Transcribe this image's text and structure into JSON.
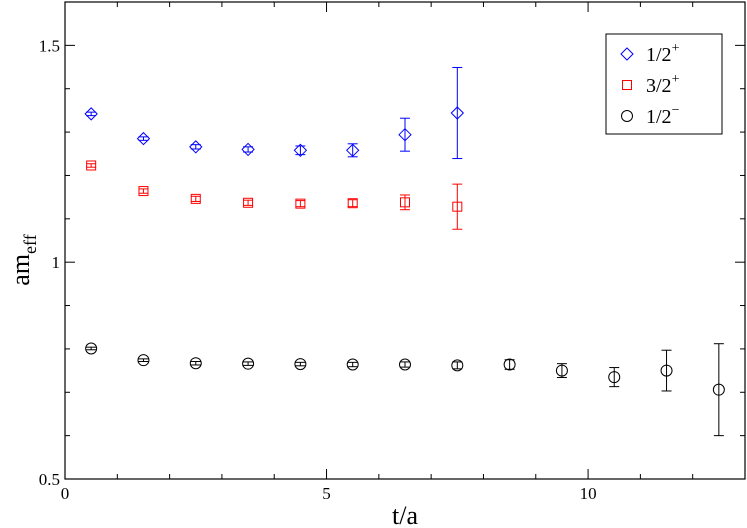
{
  "chart_data": {
    "type": "scatter",
    "xlabel": "t/a",
    "ylabel": {
      "main": "am",
      "sub": "eff"
    },
    "xlim": [
      0,
      13
    ],
    "ylim": [
      0.5,
      1.6
    ],
    "x_ticks": [
      0,
      5,
      10
    ],
    "x_tick_labels": [
      "0",
      "5",
      "10"
    ],
    "y_ticks": [
      0.5,
      1,
      1.5
    ],
    "y_tick_labels": [
      "0.5",
      "1",
      "1.5"
    ],
    "x_minor_ticks": [
      1,
      2,
      3,
      4,
      6,
      7,
      8,
      9,
      11,
      12
    ],
    "y_minor_ticks": [
      0.6,
      0.7,
      0.8,
      0.9,
      1.1,
      1.2,
      1.3,
      1.4,
      1.6
    ],
    "grid": false,
    "legend_position": "top-right",
    "series": [
      {
        "name": {
          "base": "1/2",
          "sup": "+"
        },
        "color": "#0000ff",
        "marker": "diamond",
        "points": [
          {
            "x": 0.5,
            "y": 1.342,
            "err": 0.004
          },
          {
            "x": 1.5,
            "y": 1.285,
            "err": 0.004
          },
          {
            "x": 2.5,
            "y": 1.266,
            "err": 0.005
          },
          {
            "x": 3.5,
            "y": 1.26,
            "err": 0.006
          },
          {
            "x": 4.5,
            "y": 1.258,
            "err": 0.01
          },
          {
            "x": 5.5,
            "y": 1.258,
            "err": 0.015
          },
          {
            "x": 6.5,
            "y": 1.294,
            "err": 0.038
          },
          {
            "x": 7.5,
            "y": 1.344,
            "err": 0.105
          }
        ]
      },
      {
        "name": {
          "base": "3/2",
          "sup": "+"
        },
        "color": "#ff0000",
        "marker": "square",
        "points": [
          {
            "x": 0.5,
            "y": 1.223,
            "err": 0.004
          },
          {
            "x": 1.5,
            "y": 1.164,
            "err": 0.005
          },
          {
            "x": 2.5,
            "y": 1.146,
            "err": 0.006
          },
          {
            "x": 3.5,
            "y": 1.137,
            "err": 0.006
          },
          {
            "x": 4.5,
            "y": 1.135,
            "err": 0.007
          },
          {
            "x": 5.5,
            "y": 1.136,
            "err": 0.008
          },
          {
            "x": 6.5,
            "y": 1.138,
            "err": 0.017
          },
          {
            "x": 7.5,
            "y": 1.128,
            "err": 0.052
          }
        ]
      },
      {
        "name": {
          "base": "1/2",
          "sup": "−"
        },
        "color": "#000000",
        "marker": "circle",
        "points": [
          {
            "x": 0.5,
            "y": 0.801,
            "err": 0.003
          },
          {
            "x": 1.5,
            "y": 0.774,
            "err": 0.003
          },
          {
            "x": 2.5,
            "y": 0.767,
            "err": 0.004
          },
          {
            "x": 3.5,
            "y": 0.766,
            "err": 0.004
          },
          {
            "x": 4.5,
            "y": 0.765,
            "err": 0.004
          },
          {
            "x": 5.5,
            "y": 0.764,
            "err": 0.005
          },
          {
            "x": 6.5,
            "y": 0.764,
            "err": 0.006
          },
          {
            "x": 7.5,
            "y": 0.762,
            "err": 0.008
          },
          {
            "x": 8.5,
            "y": 0.764,
            "err": 0.011
          },
          {
            "x": 9.5,
            "y": 0.75,
            "err": 0.016
          },
          {
            "x": 10.5,
            "y": 0.735,
            "err": 0.022
          },
          {
            "x": 11.5,
            "y": 0.75,
            "err": 0.047
          },
          {
            "x": 12.5,
            "y": 0.706,
            "err": 0.106
          }
        ]
      }
    ]
  }
}
